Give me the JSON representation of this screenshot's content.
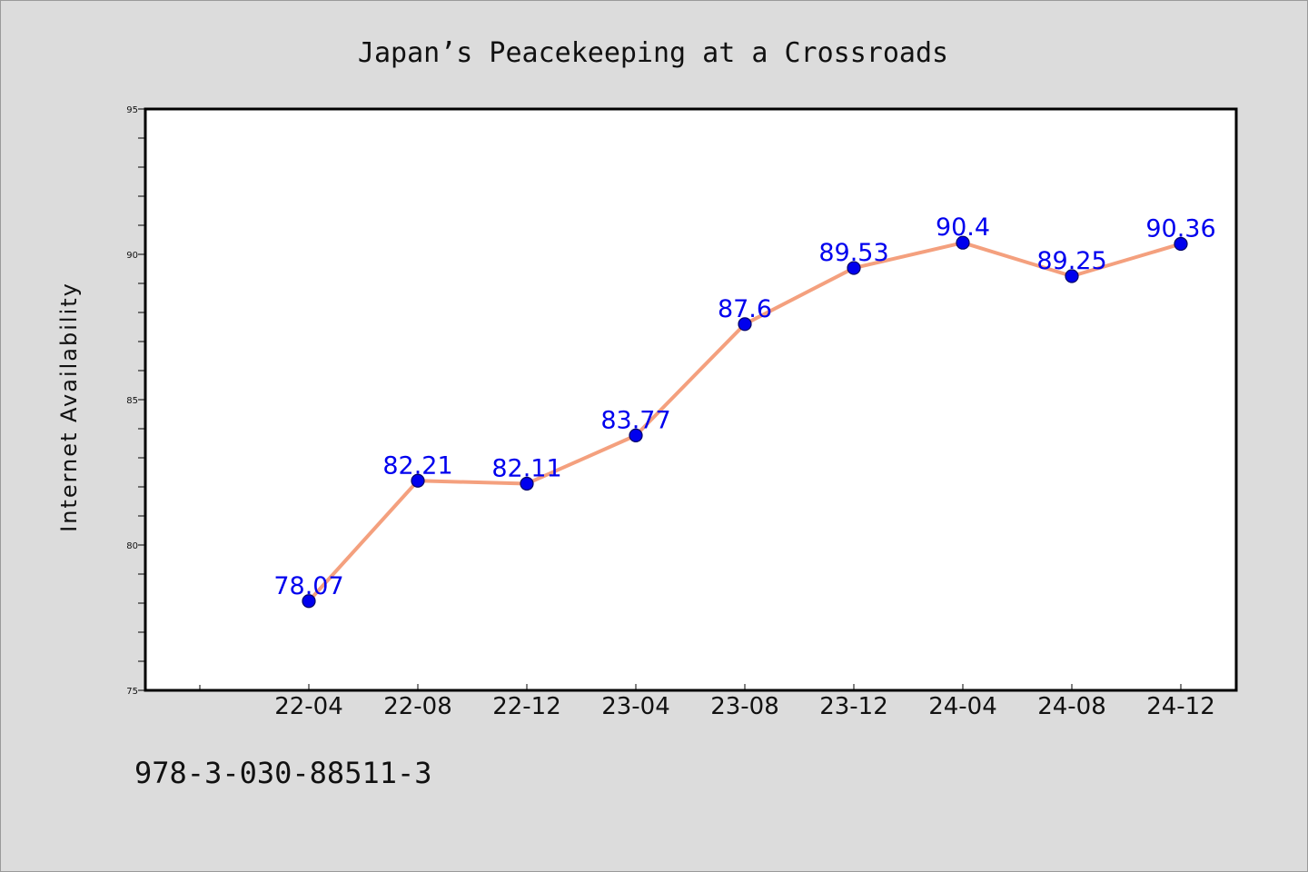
{
  "chart_data": {
    "type": "line",
    "title": "Japan’s Peacekeeping at a Crossroads",
    "xlabel": "",
    "ylabel": "Internet Availability",
    "categories": [
      "22-04",
      "22-08",
      "22-12",
      "23-04",
      "23-08",
      "23-12",
      "24-04",
      "24-08",
      "24-12"
    ],
    "series": [
      {
        "values": [
          78.07,
          82.21,
          82.11,
          83.77,
          87.6,
          89.53,
          90.4,
          89.25,
          90.36
        ]
      }
    ],
    "data_labels": [
      "78.07",
      "82.21",
      "82.11",
      "83.77",
      "87.6",
      "89.53",
      "90.4",
      "89.25",
      "90.36"
    ],
    "ylim": [
      75,
      95
    ],
    "yticks": [
      "75",
      "80",
      "85",
      "90",
      "95"
    ],
    "grid": false,
    "legend": "none",
    "colors": {
      "line": "#f4a07e",
      "marker": "#0000ee",
      "marker_edge": "#000066",
      "label": "#0000ee",
      "plot_bg": "#ffffff",
      "page_bg": "#dcdcdc"
    }
  },
  "footer": {
    "code": "978-3-030-88511-3"
  }
}
